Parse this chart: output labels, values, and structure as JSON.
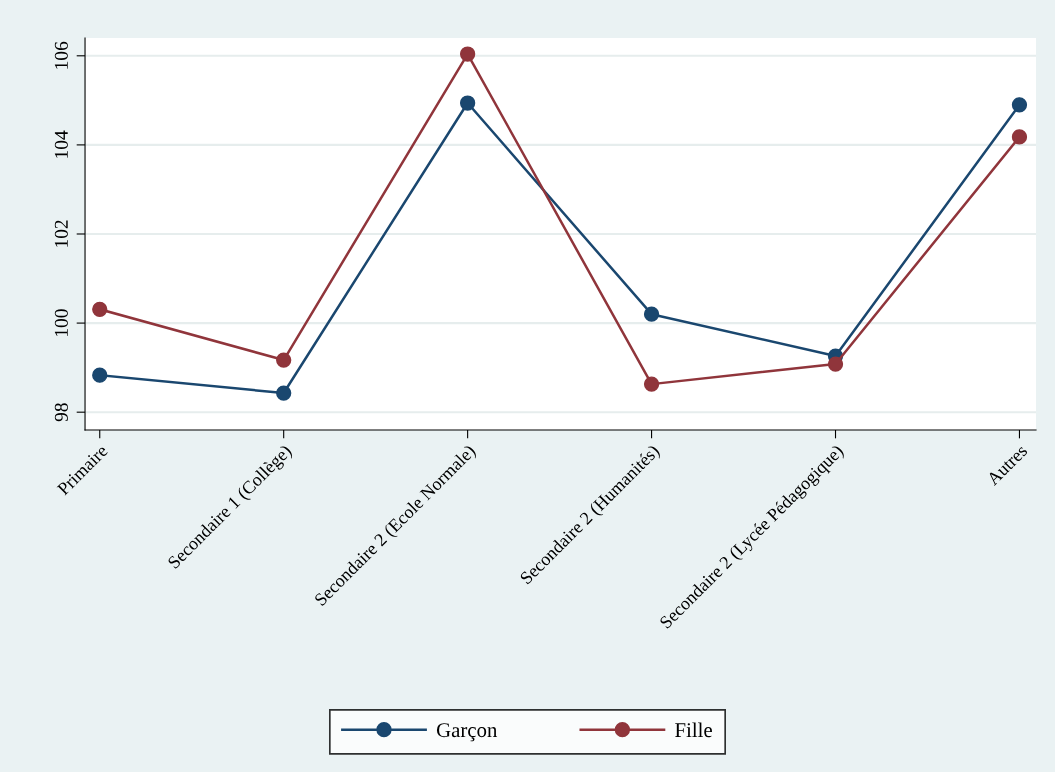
{
  "chart_data": {
    "type": "line",
    "categories": [
      "Primaire",
      "Secondaire 1 (Collège)",
      "Secondaire 2 (Ecole Normale)",
      "Secondaire 2 (Humanités)",
      "Secondaire 2 (Lycée Pédagogique)",
      "Autres"
    ],
    "series": [
      {
        "name": "Garçon",
        "color": "#1a476f",
        "values": [
          98.83,
          98.43,
          104.94,
          100.2,
          99.26,
          104.9
        ]
      },
      {
        "name": "Fille",
        "color": "#90353b",
        "values": [
          100.31,
          99.17,
          106.04,
          98.63,
          99.08,
          104.18
        ]
      }
    ],
    "ylim": [
      97.6,
      106.4
    ],
    "yticks": [
      98,
      100,
      102,
      104,
      106
    ],
    "grid": "y",
    "legend": "bottom",
    "marker": "circle",
    "line_style": "solid"
  }
}
